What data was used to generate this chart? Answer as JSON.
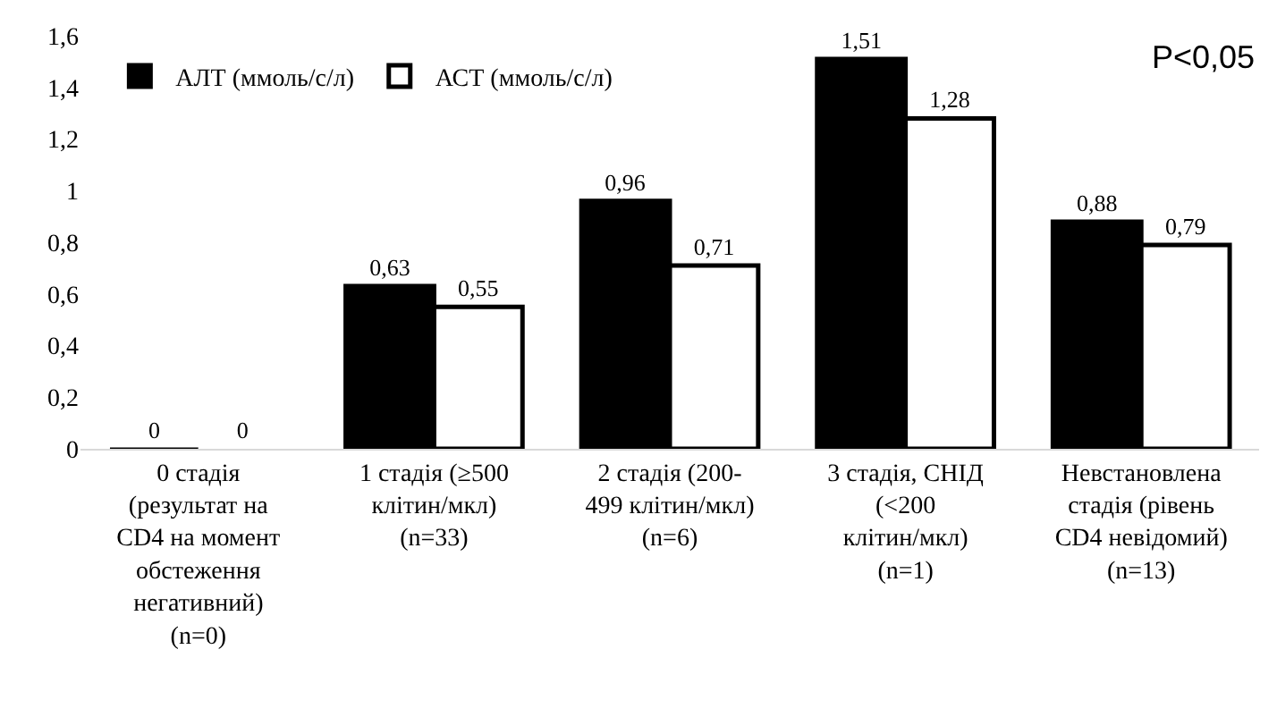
{
  "chart_data": {
    "type": "bar",
    "categories": [
      "0 стадія\n(результат на\nCD4 на момент\nобстеження\nнегативний)\n(n=0)",
      "1 стадія (≥500\nклітин/мкл)\n(n=33)",
      "2 стадія (200-\n499 клітин/мкл)\n(n=6)",
      "3 стадія, СНІД\n(<200\nклітин/мкл)\n(n=1)",
      "Невстановлена\nстадія (рівень\nCD4 невідомий)\n(n=13)"
    ],
    "series": [
      {
        "name": "АЛТ (ммоль/с/л)",
        "color": "#000000",
        "values": [
          0,
          0.63,
          0.96,
          1.51,
          0.88
        ],
        "value_labels": [
          "0",
          "0,63",
          "0,96",
          "1,51",
          "0,88"
        ]
      },
      {
        "name": "АСТ (ммоль/с/л)",
        "color": "#ffffff",
        "values": [
          0,
          0.55,
          0.71,
          1.28,
          0.79
        ],
        "value_labels": [
          "0",
          "0,55",
          "0,71",
          "1,28",
          "0,79"
        ]
      }
    ],
    "ylim": [
      0,
      1.6
    ],
    "yticks": [
      0,
      {
        "value": 0.2,
        "label": "0,2"
      },
      {
        "value": 0.4,
        "label": "0,4"
      },
      {
        "value": 0.6,
        "label": "0,6"
      },
      {
        "value": 0.8,
        "label": "0,8"
      },
      1,
      {
        "value": 1.2,
        "label": "1,2"
      },
      {
        "value": 1.4,
        "label": "1,4"
      },
      {
        "value": 1.6,
        "label": "1,6"
      }
    ],
    "legend": "top left",
    "annotations": [
      "P<0,05"
    ]
  }
}
